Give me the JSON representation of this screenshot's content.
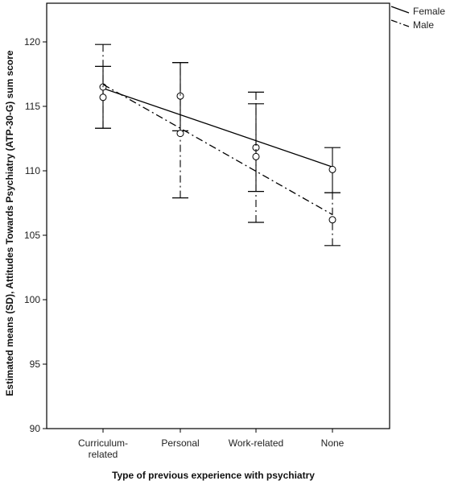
{
  "chart_data": {
    "type": "line",
    "xlabel": "Type of previous experience with psychiatry",
    "ylabel": "Estimated means (SD), Attitudes Towards Psychiatry (ATP-30-G) sum score",
    "categories": [
      [
        "Curriculum-",
        "related"
      ],
      [
        "Personal"
      ],
      [
        "Work-related"
      ],
      [
        "None"
      ]
    ],
    "ylim": [
      90,
      123
    ],
    "yticks": [
      90,
      95,
      100,
      105,
      110,
      115,
      120
    ],
    "grid": false,
    "legend_position": "top-right",
    "series": [
      {
        "name": "Female",
        "line_style": "solid",
        "values": [
          116.5,
          115.8,
          111.8,
          110.1
        ],
        "error_low": [
          113.3,
          113.1,
          108.4,
          108.3
        ],
        "error_high": [
          118.1,
          118.4,
          115.2,
          111.8
        ]
      },
      {
        "name": "Male",
        "line_style": "dashdot",
        "values": [
          115.7,
          112.9,
          111.1,
          106.2
        ],
        "error_low": [
          113.3,
          107.9,
          106.0,
          104.2
        ],
        "error_high": [
          119.8,
          118.4,
          116.1,
          108.3
        ]
      }
    ],
    "regression": {
      "Female": [
        116.4,
        110.3
      ],
      "Male": [
        116.7,
        106.6
      ]
    }
  }
}
